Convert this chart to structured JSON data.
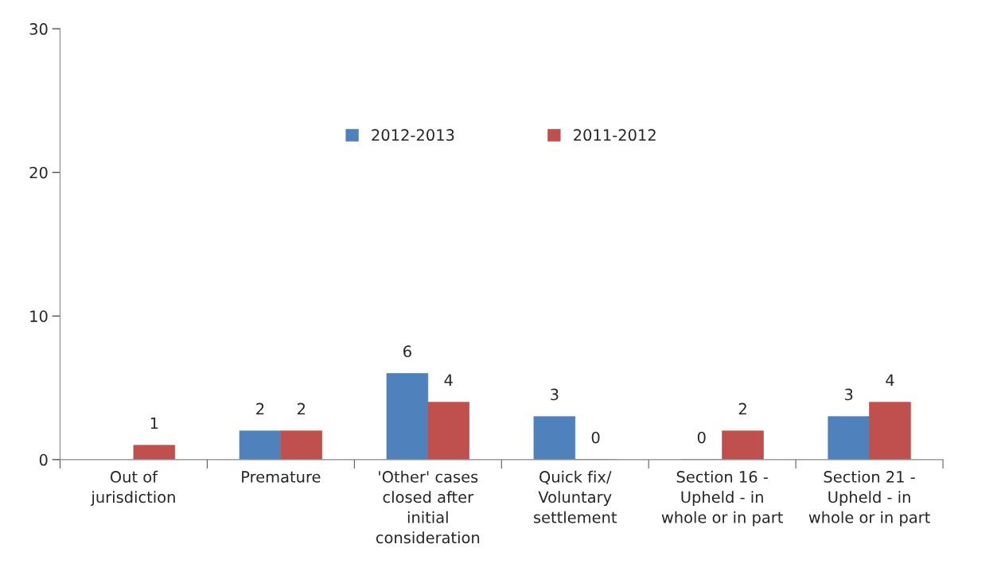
{
  "chart_data": {
    "type": "bar",
    "categories": [
      "Out of\njurisdiction",
      "Premature",
      "'Other' cases\nclosed after\ninitial\nconsideration",
      "Quick fix/\nVoluntary\nsettlement",
      "Section 16 -\nUpheld - in\nwhole or in part",
      "Section 21 -\nUpheld - in\nwhole or in part"
    ],
    "series": [
      {
        "name": "2012-2013",
        "color": "#4f81bd",
        "values": [
          null,
          2,
          6,
          3,
          0,
          3
        ]
      },
      {
        "name": "2011-2012",
        "color": "#c0504d",
        "values": [
          1,
          2,
          4,
          0,
          2,
          4
        ]
      }
    ],
    "ylim": [
      0,
      30
    ],
    "yticks": [
      0,
      10,
      20,
      30
    ],
    "data_labels": true,
    "legend": "top",
    "grid": false
  }
}
